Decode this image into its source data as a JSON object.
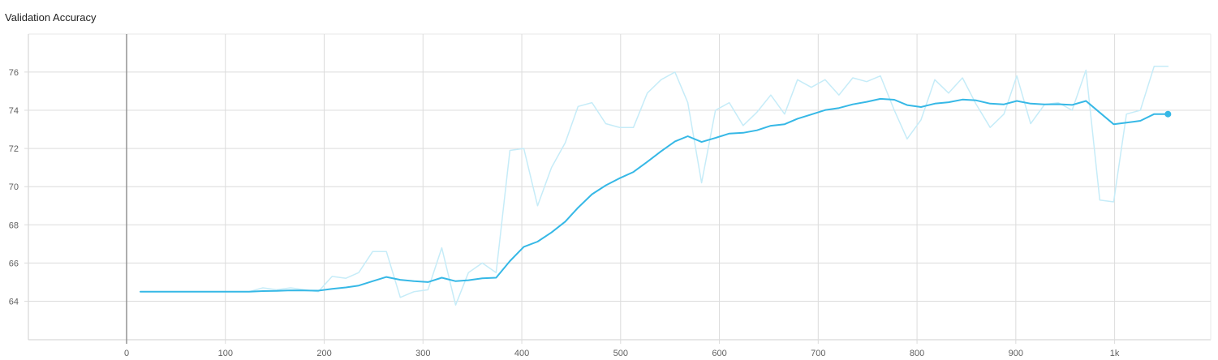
{
  "chart_data": {
    "type": "line",
    "title": "Validation Accuracy",
    "xlabel": "",
    "ylabel": "",
    "xlim": [
      -100,
      1100
    ],
    "ylim": [
      62.2,
      77.7
    ],
    "x_ticks": [
      0,
      100,
      200,
      300,
      400,
      500,
      600,
      700,
      800,
      900,
      1000
    ],
    "x_tick_labels": [
      "0",
      "100",
      "200",
      "300",
      "400",
      "500",
      "600",
      "700",
      "800",
      "900",
      "1k"
    ],
    "y_ticks": [
      64,
      66,
      68,
      70,
      72,
      74,
      76
    ],
    "y_tick_labels": [
      "64",
      "66",
      "68",
      "70",
      "72",
      "74",
      "76"
    ],
    "grid": true,
    "legend": "none",
    "series": [
      {
        "role": "raw",
        "color": "#c6ecf8",
        "x": [
          14,
          28,
          41,
          55,
          69,
          83,
          97,
          111,
          124,
          138,
          152,
          166,
          180,
          194,
          208,
          222,
          235,
          249,
          263,
          277,
          291,
          305,
          319,
          333,
          346,
          360,
          374,
          388,
          402,
          416,
          430,
          444,
          457,
          471,
          485,
          499,
          513,
          527,
          541,
          555,
          568,
          582,
          596,
          610,
          624,
          638,
          652,
          666,
          679,
          693,
          707,
          721,
          735,
          749,
          763,
          777,
          790,
          804,
          818,
          832,
          846,
          860,
          874,
          888,
          901,
          915,
          929,
          943,
          957,
          971,
          985,
          999,
          1012,
          1026,
          1040,
          1054
        ],
        "values": [
          64.5,
          64.5,
          64.5,
          64.5,
          64.5,
          64.5,
          64.5,
          64.5,
          64.5,
          64.7,
          64.6,
          64.7,
          64.6,
          64.5,
          65.3,
          65.2,
          65.5,
          66.6,
          66.6,
          64.2,
          64.5,
          64.6,
          66.8,
          63.8,
          65.5,
          66.0,
          65.5,
          71.9,
          72.0,
          69.0,
          71.0,
          72.3,
          74.2,
          74.4,
          73.3,
          73.1,
          73.1,
          74.9,
          75.6,
          76.0,
          74.4,
          70.2,
          74.0,
          74.4,
          73.2,
          73.9,
          74.8,
          73.8,
          75.6,
          75.2,
          75.6,
          74.8,
          75.7,
          75.5,
          75.8,
          74.0,
          72.5,
          73.5,
          75.6,
          74.9,
          75.7,
          74.3,
          73.1,
          73.8,
          75.8,
          73.3,
          74.3,
          74.4,
          74.0,
          76.1,
          69.3,
          69.2,
          73.8,
          74.0,
          76.3,
          76.3
        ]
      },
      {
        "role": "smoothed",
        "color": "#36b8e6",
        "x": [
          14,
          28,
          41,
          55,
          69,
          83,
          97,
          111,
          124,
          138,
          152,
          166,
          180,
          194,
          208,
          222,
          235,
          249,
          263,
          277,
          291,
          305,
          319,
          333,
          346,
          360,
          374,
          388,
          402,
          416,
          430,
          444,
          457,
          471,
          485,
          499,
          513,
          527,
          541,
          555,
          568,
          582,
          596,
          610,
          624,
          638,
          652,
          666,
          679,
          693,
          707,
          721,
          735,
          749,
          763,
          777,
          790,
          804,
          818,
          832,
          846,
          860,
          874,
          888,
          901,
          915,
          929,
          943,
          957,
          971,
          985,
          999,
          1012,
          1026,
          1040,
          1054
        ],
        "values": [
          64.5,
          64.5,
          64.5,
          64.5,
          64.5,
          64.5,
          64.5,
          64.5,
          64.5,
          64.53,
          64.54,
          64.57,
          64.56,
          64.55,
          64.65,
          64.72,
          64.82,
          65.05,
          65.27,
          65.12,
          65.05,
          65.0,
          65.23,
          65.05,
          65.1,
          65.2,
          65.23,
          66.1,
          66.85,
          67.12,
          67.6,
          68.17,
          68.9,
          69.6,
          70.07,
          70.44,
          70.77,
          71.3,
          71.85,
          72.37,
          72.64,
          72.34,
          72.55,
          72.78,
          72.82,
          72.95,
          73.19,
          73.27,
          73.56,
          73.78,
          74.01,
          74.12,
          74.31,
          74.44,
          74.6,
          74.55,
          74.27,
          74.17,
          74.35,
          74.42,
          74.56,
          74.52,
          74.35,
          74.31,
          74.49,
          74.35,
          74.31,
          74.32,
          74.28,
          74.49,
          73.88,
          73.27,
          73.35,
          73.45,
          73.8,
          73.8
        ]
      }
    ]
  }
}
